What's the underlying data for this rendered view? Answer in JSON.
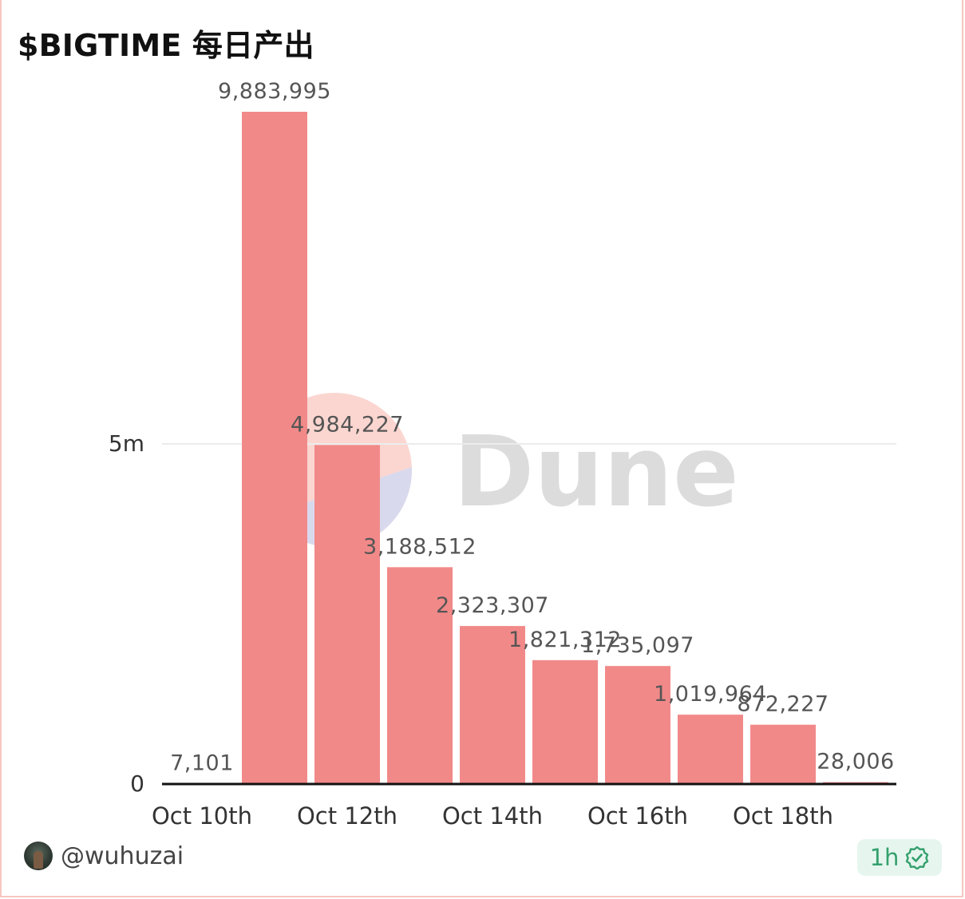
{
  "title": "$BIGTIME 每日产出",
  "watermark": "Dune",
  "footer": {
    "username": "@wuhuzai",
    "refresh_badge": "1h"
  },
  "colors": {
    "bar": "#f28989",
    "axis": "#111111",
    "grid": "#ececec",
    "label": "#555555",
    "badge_text": "#34a06d",
    "badge_bg": "#e6f6ee"
  },
  "chart_data": {
    "type": "bar",
    "title": "$BIGTIME 每日产出",
    "x": [
      "2023-10-10",
      "2023-10-11",
      "2023-10-12",
      "2023-10-13",
      "2023-10-14",
      "2023-10-15",
      "2023-10-16",
      "2023-10-17",
      "2023-10-18",
      "2023-10-19"
    ],
    "values": [
      7101,
      9883995,
      4984227,
      3188512,
      2323307,
      1821312,
      1735097,
      1019964,
      872227,
      28006
    ],
    "data_labels": [
      "7,101",
      "9,883,995",
      "4,984,227",
      "3,188,512",
      "2,323,307",
      "1,821,312",
      "1,735,097",
      "1,019,964",
      "872,227",
      "28,006"
    ],
    "x_tick_labels": [
      "Oct 10th",
      "Oct 12th",
      "Oct 14th",
      "Oct 16th",
      "Oct 18th"
    ],
    "x_tick_positions": [
      "2023-10-10",
      "2023-10-12",
      "2023-10-14",
      "2023-10-16",
      "2023-10-18"
    ],
    "y_tick_values": [
      0,
      5000000
    ],
    "y_tick_labels": [
      "0",
      "5m"
    ],
    "ylim": [
      0,
      10000000
    ],
    "xlabel": "",
    "ylabel": "",
    "grid": true,
    "legend": "none"
  }
}
